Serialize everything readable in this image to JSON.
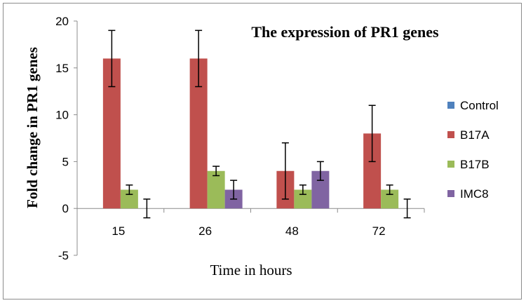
{
  "chart_data": {
    "type": "bar",
    "title": "The expression of PR1 genes",
    "xlabel": "Time in hours",
    "ylabel": "Fold change in PR1 genes",
    "categories": [
      "15",
      "26",
      "48",
      "72"
    ],
    "ylim": [
      -5,
      20
    ],
    "yticks": [
      -5,
      0,
      5,
      10,
      15,
      20
    ],
    "grid": false,
    "legend_position": "right",
    "series": [
      {
        "name": "Control",
        "color": "#4f81bd",
        "values": [
          0,
          0,
          0,
          0
        ],
        "errors": [
          0,
          0,
          0,
          0
        ]
      },
      {
        "name": "B17A",
        "color": "#c0504d",
        "values": [
          16,
          16,
          4,
          8
        ],
        "errors": [
          3,
          3,
          3,
          3
        ]
      },
      {
        "name": "B17B",
        "color": "#9bbb59",
        "values": [
          2,
          4,
          2,
          2
        ],
        "errors": [
          0.5,
          0.5,
          0.5,
          0.5
        ]
      },
      {
        "name": "IMC8",
        "color": "#8064a2",
        "values": [
          0,
          2,
          4,
          0
        ],
        "errors": [
          1,
          1,
          1,
          1
        ]
      }
    ]
  }
}
